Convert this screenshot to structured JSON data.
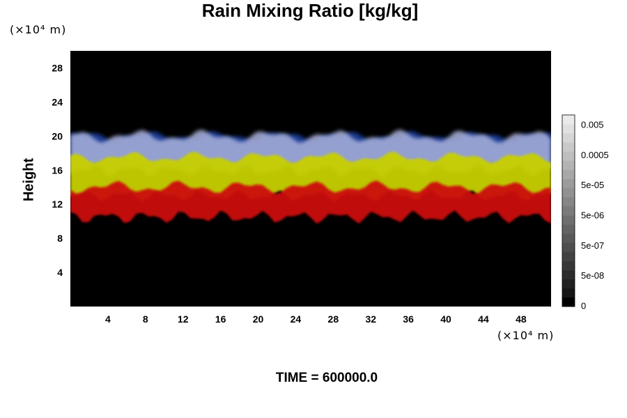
{
  "title": "Rain Mixing Ratio [kg/kg]",
  "y_unit": "(×10⁴ m)",
  "x_unit": "(×10⁴ m)",
  "footer": "TIME = 600000.0",
  "chart_data": {
    "type": "heatmap",
    "title": "Rain Mixing Ratio [kg/kg]",
    "xlabel": "",
    "ylabel": "Height",
    "xlim": [
      0,
      51.2
    ],
    "ylim": [
      0,
      30
    ],
    "x_ticks": [
      4,
      8,
      12,
      16,
      20,
      24,
      28,
      32,
      36,
      40,
      44,
      48
    ],
    "y_ticks": [
      4,
      8,
      12,
      16,
      20,
      24,
      28
    ],
    "colorbar": {
      "tick_labels": [
        "0.005",
        "0.0005",
        "5e-05",
        "5e-06",
        "5e-07",
        "5e-08",
        "0"
      ],
      "levels": 21
    },
    "bands": [
      {
        "color": "#cc1010",
        "y_range": [
          10.5,
          14
        ],
        "note_color": "red"
      },
      {
        "color": "#c8d000",
        "y_range": [
          13,
          17.5
        ],
        "note_color": "yellow"
      },
      {
        "color": "#1f3fa0",
        "y_range": [
          16.5,
          20
        ],
        "note_color": "blue"
      },
      {
        "color": "#aab2dc",
        "y_range": [
          16,
          20
        ],
        "note_color": "light-lavender"
      }
    ],
    "background_color": "#000000"
  }
}
